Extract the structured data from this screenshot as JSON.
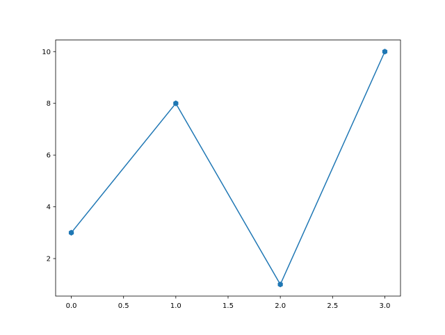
{
  "chart_data": {
    "type": "line",
    "title": "",
    "xlabel": "",
    "ylabel": "",
    "x": [
      0,
      1,
      2,
      3
    ],
    "series": [
      {
        "values": [
          3,
          8,
          1,
          10
        ],
        "color": "#1f77b4",
        "marker": "hexagon"
      }
    ],
    "xlim": [
      -0.15,
      3.15
    ],
    "ylim": [
      0.55,
      10.45
    ],
    "xticks": [
      0.0,
      0.5,
      1.0,
      1.5,
      2.0,
      2.5,
      3.0
    ],
    "xtick_labels": [
      "0.0",
      "0.5",
      "1.0",
      "1.5",
      "2.0",
      "2.5",
      "3.0"
    ],
    "yticks": [
      2,
      4,
      6,
      8,
      10
    ],
    "ytick_labels": [
      "2",
      "4",
      "6",
      "8",
      "10"
    ],
    "grid": false,
    "legend": "none"
  }
}
